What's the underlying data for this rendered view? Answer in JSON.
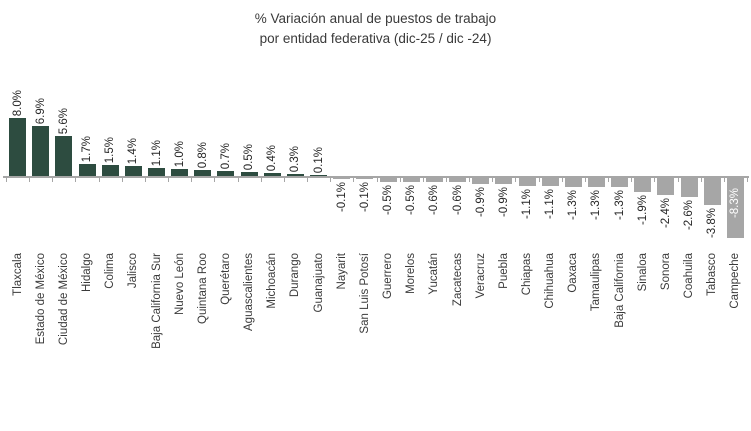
{
  "title": {
    "line1": "% Variación anual de puestos de trabajo",
    "line2": "por entidad federativa (dic-25 / dic -24)"
  },
  "colors": {
    "positive_bar": "#2d4c40",
    "negative_bar": "#a6a6a6",
    "axis": "#a6a6a6",
    "label_text": "#262626",
    "category_text": "#3a3a3a",
    "inside_label_text": "#ffffff"
  },
  "chart_data": {
    "type": "bar",
    "title": "% Variación anual de puestos de trabajo por entidad federativa (dic-25 / dic -24)",
    "xlabel": "",
    "ylabel": "",
    "ylim": [
      -8.5,
      8.5
    ],
    "grid": false,
    "legend": false,
    "value_label_rotation": 90,
    "category_label_rotation": 90,
    "categories": [
      "Tlaxcala",
      "Estado de México",
      "Ciudad de México",
      "Hidalgo",
      "Colima",
      "Jalisco",
      "Baja California Sur",
      "Nuevo León",
      "Quintana Roo",
      "Querétaro",
      "Aguascalientes",
      "Michoacán",
      "Durango",
      "Guanajuato",
      "Nayarit",
      "San Luis Potosí",
      "Guerrero",
      "Morelos",
      "Yucatán",
      "Zacatecas",
      "Veracruz",
      "Puebla",
      "Chiapas",
      "Chihuahua",
      "Oaxaca",
      "Tamaulipas",
      "Baja California",
      "Sinaloa",
      "Sonora",
      "Coahuila",
      "Tabasco",
      "Campeche"
    ],
    "values": [
      8.0,
      6.9,
      5.6,
      1.7,
      1.5,
      1.4,
      1.1,
      1.0,
      0.8,
      0.7,
      0.5,
      0.4,
      0.3,
      0.1,
      -0.1,
      -0.1,
      -0.5,
      -0.5,
      -0.6,
      -0.6,
      -0.9,
      -0.9,
      -1.1,
      -1.1,
      -1.3,
      -1.3,
      -1.3,
      -1.9,
      -2.4,
      -2.6,
      -3.8,
      -8.3
    ],
    "value_labels": [
      "8.0%",
      "6.9%",
      "5.6%",
      "1.7%",
      "1.5%",
      "1.4%",
      "1.1%",
      "1.0%",
      "0.8%",
      "0.7%",
      "0.5%",
      "0.4%",
      "0.3%",
      "0.1%",
      "-0.1%",
      "-0.1%",
      "-0.5%",
      "-0.5%",
      "-0.6%",
      "-0.6%",
      "-0.9%",
      "-0.9%",
      "-1.1%",
      "-1.1%",
      "-1.3%",
      "-1.3%",
      "-1.3%",
      "-1.9%",
      "-2.4%",
      "-2.6%",
      "-3.8%",
      "-8.3%"
    ],
    "inside_bar_label_category": "Campeche"
  }
}
